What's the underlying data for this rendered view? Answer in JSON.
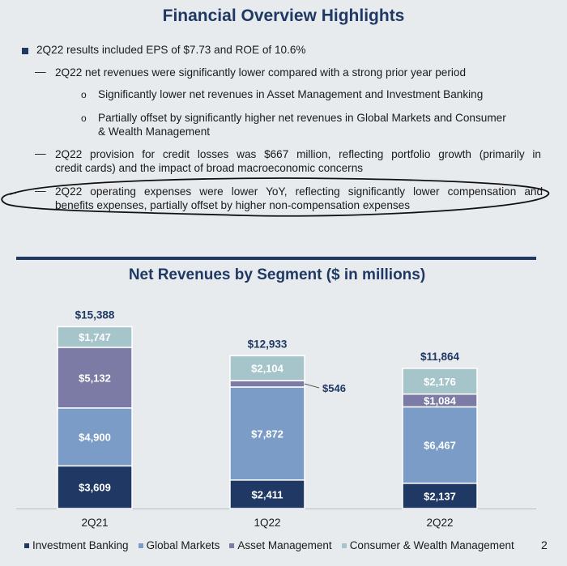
{
  "title": "Financial Overview Highlights",
  "bullets": {
    "b1": "2Q22 results included EPS of $7.73 and ROE of 10.6%",
    "b2": "2Q22 net revenues were significantly lower compared with a strong prior year period",
    "b2a": "Significantly lower net revenues in Asset Management and Investment Banking",
    "b2b_l1": "Partially offset by significantly higher net revenues in Global Markets and Consumer",
    "b2b_l2": "& Wealth Management",
    "b3_l1": "2Q22 provision for credit losses was $667 million, reflecting portfolio growth (primarily in",
    "b3_l2": "credit cards) and the impact of broad macroeconomic concerns",
    "b4_l1": "2Q22 operating expenses were lower YoY, reflecting significantly lower compensation and",
    "b4_l2": "benefits expenses, partially offset by higher non-compensation expenses",
    "dash": "—",
    "circle": "o"
  },
  "page_number": "2",
  "colors": {
    "investment_banking": "#1f3864",
    "global_markets": "#7a9cc6",
    "asset_management": "#7b7ba6",
    "consumer_wealth": "#a6c5cb",
    "title": "#1f3864"
  },
  "chart_data": {
    "type": "bar",
    "stacked": true,
    "title": "Net Revenues by Segment ($ in millions)",
    "categories": [
      "2Q21",
      "1Q22",
      "2Q22"
    ],
    "totals": [
      "$15,388",
      "$12,933",
      "$11,864"
    ],
    "total_values": [
      15388,
      12933,
      11864
    ],
    "series": [
      {
        "name": "Investment Banking",
        "values": [
          3609,
          2411,
          2137
        ],
        "labels": [
          "$3,609",
          "$2,411",
          "$2,137"
        ],
        "color": "#1f3864"
      },
      {
        "name": "Global Markets",
        "values": [
          4900,
          7872,
          6467
        ],
        "labels": [
          "$4,900",
          "$7,872",
          "$6,467"
        ],
        "color": "#7a9cc6"
      },
      {
        "name": "Asset Management",
        "values": [
          5132,
          546,
          1084
        ],
        "labels": [
          "$5,132",
          "$546",
          "$1,084"
        ],
        "color": "#7b7ba6"
      },
      {
        "name": "Consumer & Wealth Management",
        "values": [
          1747,
          2104,
          2176
        ],
        "labels": [
          "$1,747",
          "$2,104",
          "$2,176"
        ],
        "color": "#a6c5cb"
      }
    ],
    "legend_position": "bottom",
    "grid": false
  }
}
